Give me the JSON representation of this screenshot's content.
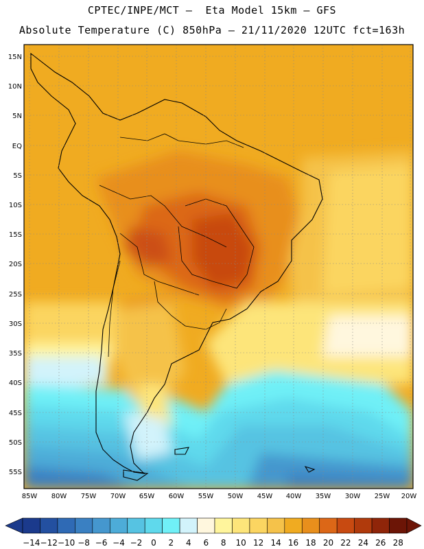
{
  "header": {
    "title_line1": "CPTEC/INPE/MCT –  Eta Model 15km – GFS",
    "title_line2": "Absolute Temperature (C) 850hPa – 21/11/2020 12UTC fct=163h"
  },
  "map": {
    "region": "South America",
    "lat_labels": [
      "15N",
      "10N",
      "5N",
      "EQ",
      "5S",
      "10S",
      "15S",
      "20S",
      "25S",
      "30S",
      "35S",
      "40S",
      "45S",
      "50S",
      "55S"
    ],
    "lon_labels": [
      "85W",
      "80W",
      "75W",
      "70W",
      "65W",
      "60W",
      "55W",
      "50W",
      "45W",
      "40W",
      "35W",
      "30W",
      "25W",
      "20W"
    ]
  },
  "colorbar": {
    "unit": "C",
    "labels": [
      "-14",
      "-12",
      "-10",
      "-8",
      "-6",
      "-4",
      "-2",
      "0",
      "2",
      "4",
      "6",
      "8",
      "10",
      "12",
      "14",
      "16",
      "18",
      "20",
      "22",
      "24",
      "26",
      "28"
    ],
    "colors": [
      "#1b3a8c",
      "#2350a0",
      "#2f6ab5",
      "#3a80c2",
      "#4597ce",
      "#4dacd8",
      "#56c3e2",
      "#5fd9ec",
      "#70f0f7",
      "#d2f3fb",
      "#fff7de",
      "#fff59c",
      "#fde57a",
      "#fbd561",
      "#f5c24a",
      "#f0ab21",
      "#e88f1c",
      "#dc6717",
      "#c84a11",
      "#b03a0c",
      "#8f2509",
      "#6c1506"
    ]
  }
}
